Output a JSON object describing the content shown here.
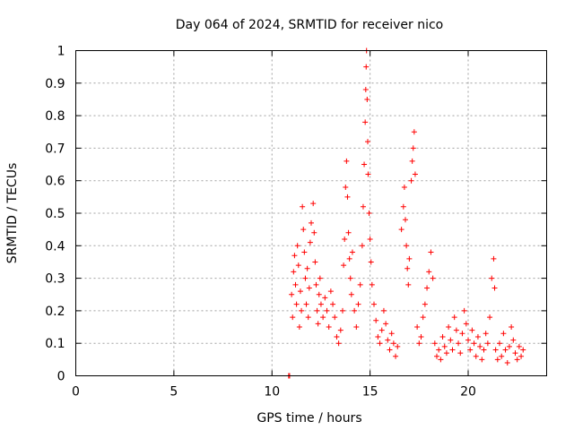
{
  "chart_data": {
    "type": "scatter",
    "title": "Day 064 of 2024, SRMTID for receiver nico",
    "xlabel": "GPS time / hours",
    "ylabel": "SRMTID / TECUs",
    "xlim": [
      0,
      24
    ],
    "ylim": [
      0,
      1
    ],
    "xticks": [
      0,
      5,
      10,
      15,
      20
    ],
    "yticks": [
      0,
      0.1,
      0.2,
      0.3,
      0.4,
      0.5,
      0.6,
      0.7,
      0.8,
      0.9,
      1
    ],
    "xtick_labels": [
      "0",
      "5",
      "10",
      "15",
      "20"
    ],
    "ytick_labels": [
      "0",
      "0.1",
      "0.2",
      "0.3",
      "0.4",
      "0.5",
      "0.6",
      "0.7",
      "0.8",
      "0.9",
      "1"
    ],
    "grid": true,
    "marker": "+",
    "color": "#ff0000",
    "series": [
      {
        "name": "SRMTID",
        "points": [
          [
            10.85,
            0.0
          ],
          [
            10.9,
            0.0
          ],
          [
            11.0,
            0.25
          ],
          [
            11.05,
            0.18
          ],
          [
            11.1,
            0.32
          ],
          [
            11.15,
            0.37
          ],
          [
            11.2,
            0.28
          ],
          [
            11.25,
            0.22
          ],
          [
            11.3,
            0.4
          ],
          [
            11.35,
            0.34
          ],
          [
            11.4,
            0.15
          ],
          [
            11.45,
            0.26
          ],
          [
            11.5,
            0.2
          ],
          [
            11.55,
            0.52
          ],
          [
            11.6,
            0.45
          ],
          [
            11.65,
            0.38
          ],
          [
            11.7,
            0.3
          ],
          [
            11.75,
            0.22
          ],
          [
            11.8,
            0.33
          ],
          [
            11.85,
            0.18
          ],
          [
            11.9,
            0.27
          ],
          [
            11.95,
            0.41
          ],
          [
            12.0,
            0.47
          ],
          [
            12.1,
            0.53
          ],
          [
            12.15,
            0.44
          ],
          [
            12.2,
            0.35
          ],
          [
            12.25,
            0.28
          ],
          [
            12.3,
            0.2
          ],
          [
            12.35,
            0.16
          ],
          [
            12.4,
            0.25
          ],
          [
            12.45,
            0.3
          ],
          [
            12.5,
            0.22
          ],
          [
            12.6,
            0.18
          ],
          [
            12.7,
            0.24
          ],
          [
            12.8,
            0.2
          ],
          [
            12.9,
            0.15
          ],
          [
            13.0,
            0.26
          ],
          [
            13.1,
            0.22
          ],
          [
            13.2,
            0.18
          ],
          [
            13.3,
            0.12
          ],
          [
            13.4,
            0.1
          ],
          [
            13.5,
            0.14
          ],
          [
            13.6,
            0.2
          ],
          [
            13.65,
            0.34
          ],
          [
            13.7,
            0.42
          ],
          [
            13.75,
            0.58
          ],
          [
            13.8,
            0.66
          ],
          [
            13.85,
            0.55
          ],
          [
            13.9,
            0.44
          ],
          [
            13.95,
            0.36
          ],
          [
            14.0,
            0.3
          ],
          [
            14.05,
            0.25
          ],
          [
            14.1,
            0.38
          ],
          [
            14.2,
            0.2
          ],
          [
            14.3,
            0.15
          ],
          [
            14.4,
            0.22
          ],
          [
            14.5,
            0.28
          ],
          [
            14.6,
            0.4
          ],
          [
            14.65,
            0.52
          ],
          [
            14.7,
            0.65
          ],
          [
            14.75,
            0.78
          ],
          [
            14.78,
            0.88
          ],
          [
            14.8,
            0.95
          ],
          [
            14.82,
            1.0
          ],
          [
            14.85,
            0.85
          ],
          [
            14.88,
            0.72
          ],
          [
            14.9,
            0.62
          ],
          [
            14.95,
            0.5
          ],
          [
            15.0,
            0.42
          ],
          [
            15.05,
            0.35
          ],
          [
            15.1,
            0.28
          ],
          [
            15.2,
            0.22
          ],
          [
            15.3,
            0.17
          ],
          [
            15.4,
            0.12
          ],
          [
            15.5,
            0.1
          ],
          [
            15.6,
            0.14
          ],
          [
            15.7,
            0.2
          ],
          [
            15.8,
            0.16
          ],
          [
            15.9,
            0.11
          ],
          [
            16.0,
            0.08
          ],
          [
            16.1,
            0.13
          ],
          [
            16.2,
            0.1
          ],
          [
            16.3,
            0.06
          ],
          [
            16.4,
            0.09
          ],
          [
            16.6,
            0.45
          ],
          [
            16.7,
            0.52
          ],
          [
            16.75,
            0.58
          ],
          [
            16.8,
            0.48
          ],
          [
            16.85,
            0.4
          ],
          [
            16.9,
            0.33
          ],
          [
            16.95,
            0.28
          ],
          [
            17.0,
            0.36
          ],
          [
            17.1,
            0.6
          ],
          [
            17.15,
            0.66
          ],
          [
            17.2,
            0.7
          ],
          [
            17.25,
            0.75
          ],
          [
            17.3,
            0.62
          ],
          [
            17.4,
            0.15
          ],
          [
            17.5,
            0.1
          ],
          [
            17.6,
            0.12
          ],
          [
            17.7,
            0.18
          ],
          [
            17.8,
            0.22
          ],
          [
            17.9,
            0.27
          ],
          [
            18.0,
            0.32
          ],
          [
            18.1,
            0.38
          ],
          [
            18.2,
            0.3
          ],
          [
            18.3,
            0.1
          ],
          [
            18.4,
            0.06
          ],
          [
            18.5,
            0.08
          ],
          [
            18.6,
            0.05
          ],
          [
            18.7,
            0.12
          ],
          [
            18.8,
            0.09
          ],
          [
            18.9,
            0.07
          ],
          [
            19.0,
            0.15
          ],
          [
            19.1,
            0.11
          ],
          [
            19.2,
            0.08
          ],
          [
            19.3,
            0.18
          ],
          [
            19.4,
            0.14
          ],
          [
            19.5,
            0.1
          ],
          [
            19.6,
            0.07
          ],
          [
            19.7,
            0.13
          ],
          [
            19.8,
            0.2
          ],
          [
            19.9,
            0.16
          ],
          [
            20.0,
            0.11
          ],
          [
            20.1,
            0.08
          ],
          [
            20.2,
            0.14
          ],
          [
            20.3,
            0.1
          ],
          [
            20.4,
            0.06
          ],
          [
            20.5,
            0.12
          ],
          [
            20.6,
            0.09
          ],
          [
            20.7,
            0.05
          ],
          [
            20.8,
            0.08
          ],
          [
            20.9,
            0.13
          ],
          [
            21.0,
            0.1
          ],
          [
            21.1,
            0.18
          ],
          [
            21.2,
            0.3
          ],
          [
            21.3,
            0.36
          ],
          [
            21.35,
            0.27
          ],
          [
            21.4,
            0.08
          ],
          [
            21.5,
            0.05
          ],
          [
            21.6,
            0.1
          ],
          [
            21.7,
            0.06
          ],
          [
            21.8,
            0.13
          ],
          [
            21.9,
            0.08
          ],
          [
            22.0,
            0.04
          ],
          [
            22.1,
            0.09
          ],
          [
            22.2,
            0.15
          ],
          [
            22.3,
            0.11
          ],
          [
            22.4,
            0.07
          ],
          [
            22.5,
            0.05
          ],
          [
            22.6,
            0.09
          ],
          [
            22.7,
            0.06
          ],
          [
            22.8,
            0.08
          ]
        ]
      }
    ]
  }
}
